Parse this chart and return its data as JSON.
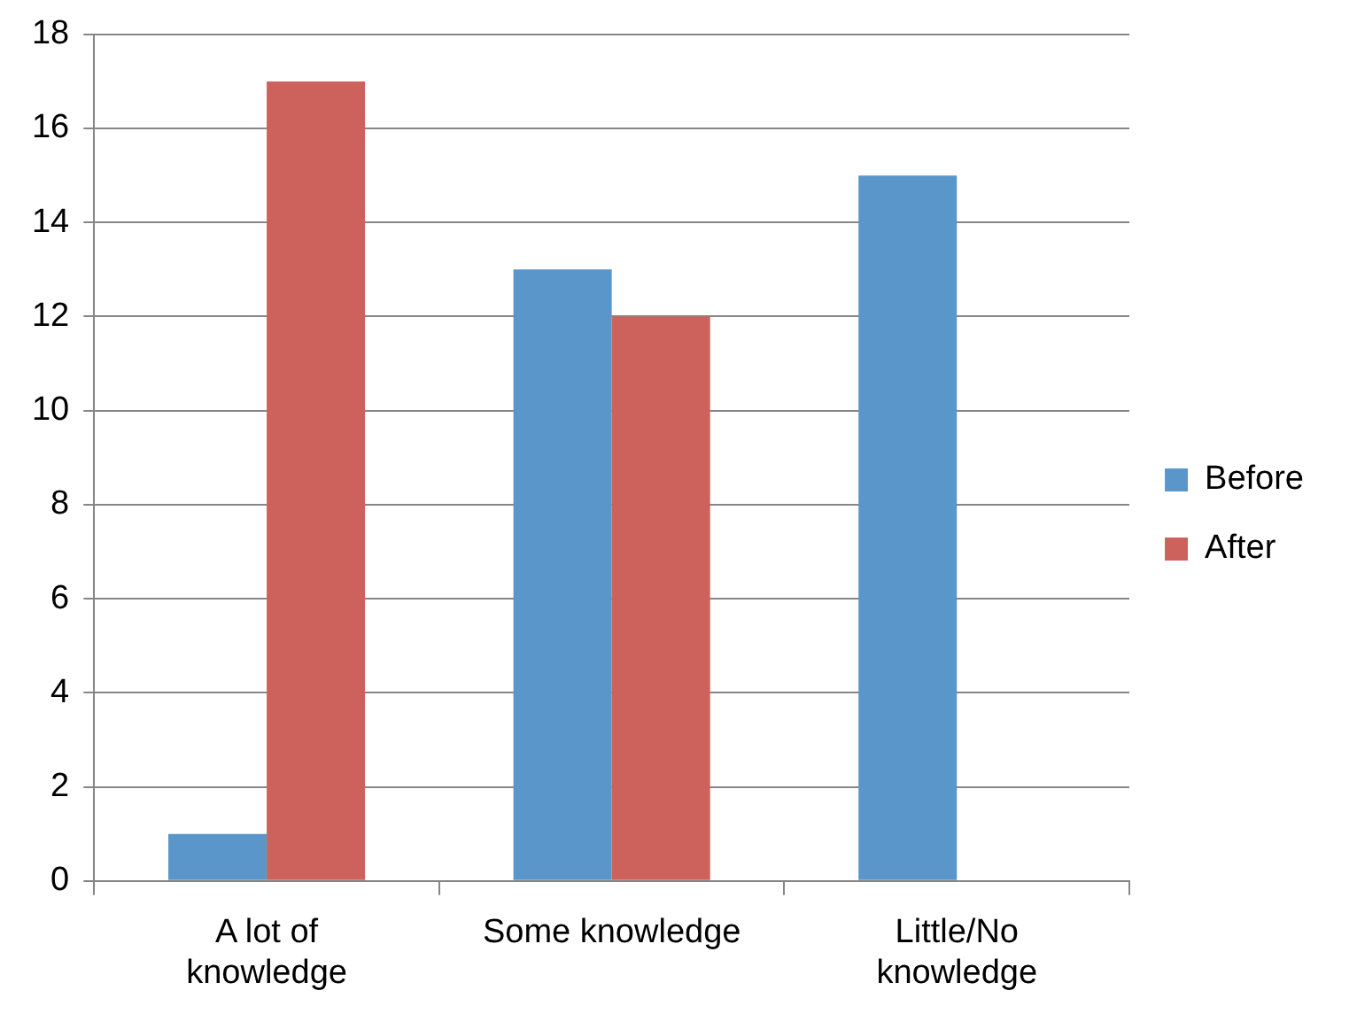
{
  "chart_data": {
    "type": "bar",
    "categories": [
      "A lot of knowledge",
      "Some knowledge",
      "Little/No knowledge"
    ],
    "series": [
      {
        "name": "Before",
        "color": "#5b96cb",
        "values": [
          1,
          13,
          15
        ]
      },
      {
        "name": "After",
        "color": "#cd625c",
        "values": [
          17,
          12,
          0
        ]
      }
    ],
    "ylim": [
      0,
      18
    ],
    "yticks": [
      0,
      2,
      4,
      6,
      8,
      10,
      12,
      14,
      16,
      18
    ],
    "grid": "y",
    "legend": "right"
  }
}
